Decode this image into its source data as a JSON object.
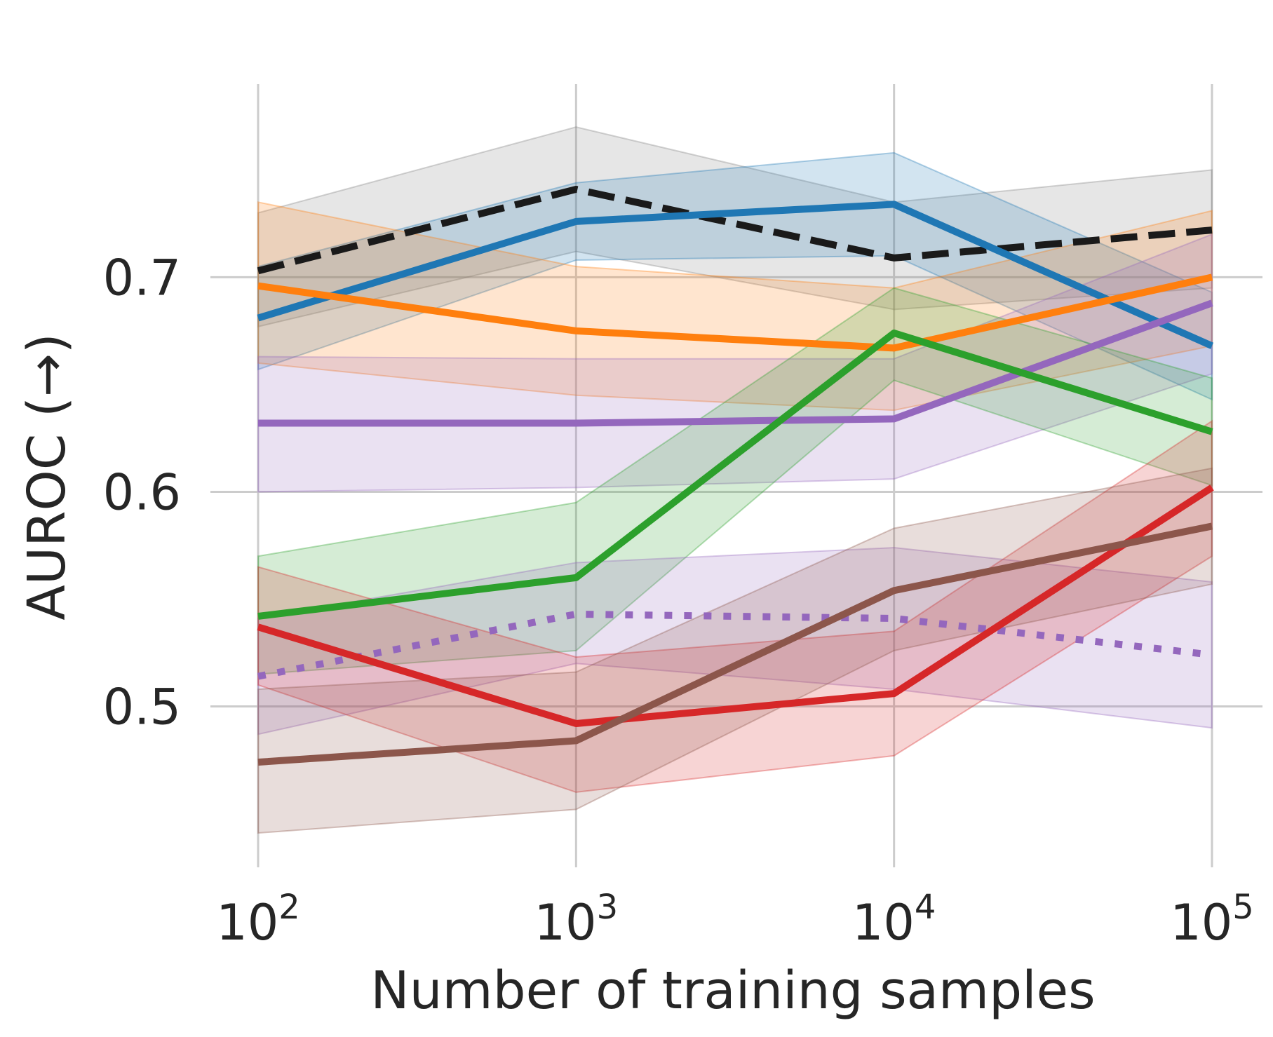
{
  "chart_data": {
    "type": "line",
    "title": "",
    "xlabel": "Number of training samples",
    "ylabel": "AUROC (→)",
    "x": [
      100,
      1000,
      10000,
      100000
    ],
    "x_tick_labels": [
      {
        "base": "10",
        "exp": "2"
      },
      {
        "base": "10",
        "exp": "3"
      },
      {
        "base": "10",
        "exp": "4"
      },
      {
        "base": "10",
        "exp": "5"
      }
    ],
    "xscale": "log",
    "y_ticks": [
      0.5,
      0.6,
      0.7
    ],
    "y_tick_labels": [
      "0.5",
      "0.6",
      "0.7"
    ],
    "ylim": [
      0.425,
      0.79
    ],
    "grid": true,
    "legend": "none",
    "series": [
      {
        "name": "series-gray-dashed",
        "color": "#1a1a1a",
        "band_color": "#808080",
        "dash": "dashed",
        "values": [
          0.703,
          0.741,
          0.709,
          0.722
        ],
        "lower": [
          0.677,
          0.712,
          0.685,
          0.695
        ],
        "upper": [
          0.73,
          0.77,
          0.735,
          0.75
        ]
      },
      {
        "name": "series-blue",
        "color": "#1f77b4",
        "band_color": "#1f77b4",
        "dash": "solid",
        "values": [
          0.681,
          0.726,
          0.734,
          0.668
        ],
        "lower": [
          0.657,
          0.708,
          0.71,
          0.643
        ],
        "upper": [
          0.705,
          0.744,
          0.758,
          0.693
        ]
      },
      {
        "name": "series-orange",
        "color": "#ff7f0e",
        "band_color": "#ff7f0e",
        "dash": "solid",
        "values": [
          0.696,
          0.675,
          0.667,
          0.7
        ],
        "lower": [
          0.66,
          0.645,
          0.638,
          0.668
        ],
        "upper": [
          0.735,
          0.705,
          0.695,
          0.731
        ]
      },
      {
        "name": "series-purple",
        "color": "#9467bd",
        "band_color": "#9467bd",
        "dash": "solid",
        "values": [
          0.632,
          0.632,
          0.634,
          0.688
        ],
        "lower": [
          0.6,
          0.602,
          0.606,
          0.655
        ],
        "upper": [
          0.663,
          0.662,
          0.662,
          0.72
        ]
      },
      {
        "name": "series-green",
        "color": "#2ca02c",
        "band_color": "#2ca02c",
        "dash": "solid",
        "values": [
          0.542,
          0.56,
          0.674,
          0.628
        ],
        "lower": [
          0.515,
          0.526,
          0.652,
          0.603
        ],
        "upper": [
          0.57,
          0.595,
          0.695,
          0.653
        ]
      },
      {
        "name": "series-purple-dotted",
        "color": "#9467bd",
        "band_color": "#9467bd",
        "dash": "dotted",
        "values": [
          0.514,
          0.543,
          0.541,
          0.524
        ],
        "lower": [
          0.487,
          0.52,
          0.508,
          0.49
        ],
        "upper": [
          0.541,
          0.567,
          0.574,
          0.558
        ]
      },
      {
        "name": "series-red",
        "color": "#d62728",
        "band_color": "#d62728",
        "dash": "solid",
        "values": [
          0.537,
          0.492,
          0.506,
          0.602
        ],
        "lower": [
          0.51,
          0.46,
          0.477,
          0.57
        ],
        "upper": [
          0.565,
          0.523,
          0.535,
          0.633
        ]
      },
      {
        "name": "series-brown",
        "color": "#8c564b",
        "band_color": "#8c564b",
        "dash": "solid",
        "values": [
          0.474,
          0.484,
          0.554,
          0.584
        ],
        "lower": [
          0.441,
          0.452,
          0.526,
          0.557
        ],
        "upper": [
          0.508,
          0.516,
          0.583,
          0.611
        ]
      }
    ]
  }
}
